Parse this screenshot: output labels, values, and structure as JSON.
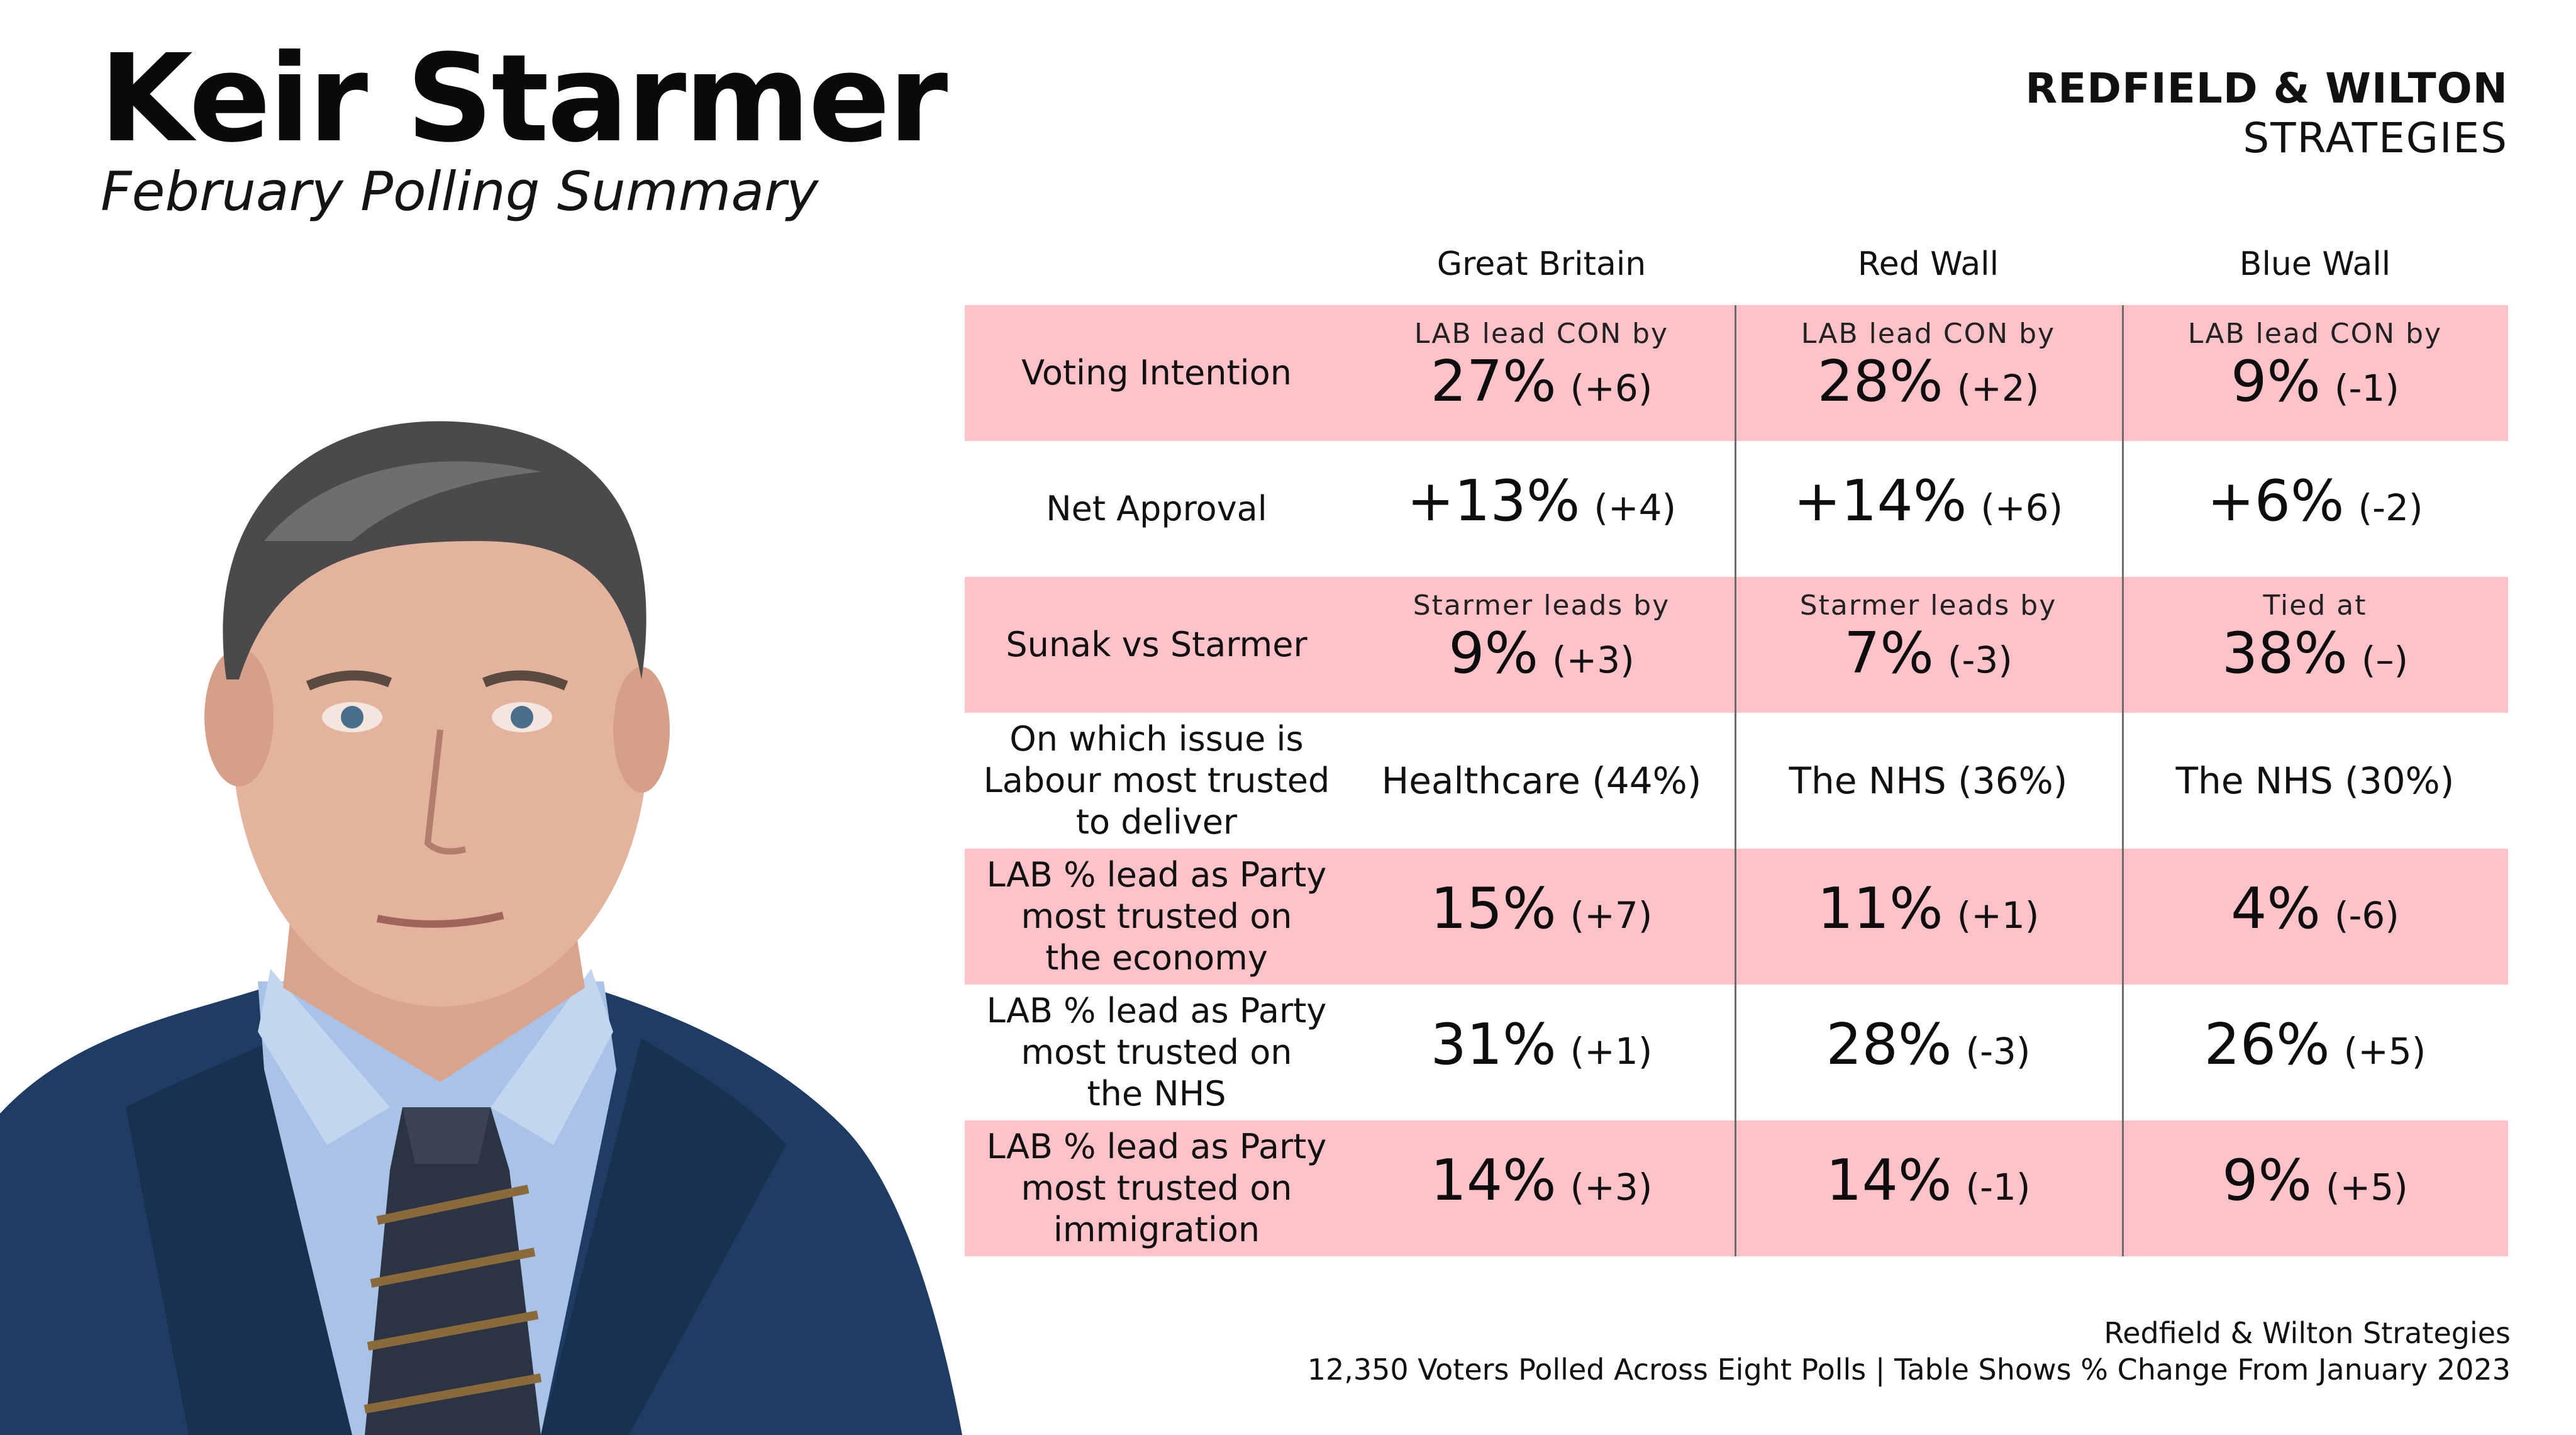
{
  "header": {
    "title": "Keir Starmer",
    "subtitle": "February Polling Summary",
    "brand_line1": "REDFIELD & WILTON",
    "brand_line2": "STRATEGIES"
  },
  "table": {
    "columns": [
      "Great Britain",
      "Red Wall",
      "Blue Wall"
    ],
    "rows": [
      {
        "label": "Voting Intention",
        "shade": true,
        "cells": [
          {
            "pre": "LAB lead CON by",
            "value": "27%",
            "change": "(+6)"
          },
          {
            "pre": "LAB lead CON by",
            "value": "28%",
            "change": "(+2)"
          },
          {
            "pre": "LAB lead CON by",
            "value": "9%",
            "change": "(-1)"
          }
        ]
      },
      {
        "label": "Net Approval",
        "shade": false,
        "cells": [
          {
            "value": "+13%",
            "change": "(+4)"
          },
          {
            "value": "+14%",
            "change": "(+6)"
          },
          {
            "value": "+6%",
            "change": "(-2)"
          }
        ]
      },
      {
        "label": "Sunak vs Starmer",
        "shade": true,
        "cells": [
          {
            "pre": "Starmer leads by",
            "value": "9%",
            "change": "(+3)"
          },
          {
            "pre": "Starmer leads by",
            "value": "7%",
            "change": "(-3)"
          },
          {
            "pre": "Tied at",
            "value": "38%",
            "change": "(–)"
          }
        ]
      },
      {
        "label": [
          "On which issue is",
          "Labour most trusted",
          "to deliver"
        ],
        "shade": false,
        "cells": [
          {
            "text": "Healthcare (44%)"
          },
          {
            "text": "The NHS (36%)"
          },
          {
            "text": "The NHS (30%)"
          }
        ]
      },
      {
        "label": [
          "LAB % lead as Party",
          "most trusted on",
          "the economy"
        ],
        "shade": true,
        "cells": [
          {
            "value": "15%",
            "change": "(+7)"
          },
          {
            "value": "11%",
            "change": "(+1)"
          },
          {
            "value": "4%",
            "change": "(-6)"
          }
        ]
      },
      {
        "label": [
          "LAB % lead as Party",
          "most trusted on",
          "the NHS"
        ],
        "shade": false,
        "cells": [
          {
            "value": "31%",
            "change": "(+1)"
          },
          {
            "value": "28%",
            "change": "(-3)"
          },
          {
            "value": "26%",
            "change": "(+5)"
          }
        ]
      },
      {
        "label": [
          "LAB % lead as Party",
          "most trusted on",
          "immigration"
        ],
        "shade": true,
        "cells": [
          {
            "value": "14%",
            "change": "(+3)"
          },
          {
            "value": "14%",
            "change": "(-1)"
          },
          {
            "value": "9%",
            "change": "(+5)"
          }
        ]
      }
    ]
  },
  "footer": {
    "line1": "Redfield & Wilton Strategies",
    "line2": "12,350 Voters Polled Across Eight Polls | Table Shows % Change From January 2023"
  },
  "colors": {
    "row_shade": "#ffc2c8",
    "divider": "#6b6b6b"
  }
}
